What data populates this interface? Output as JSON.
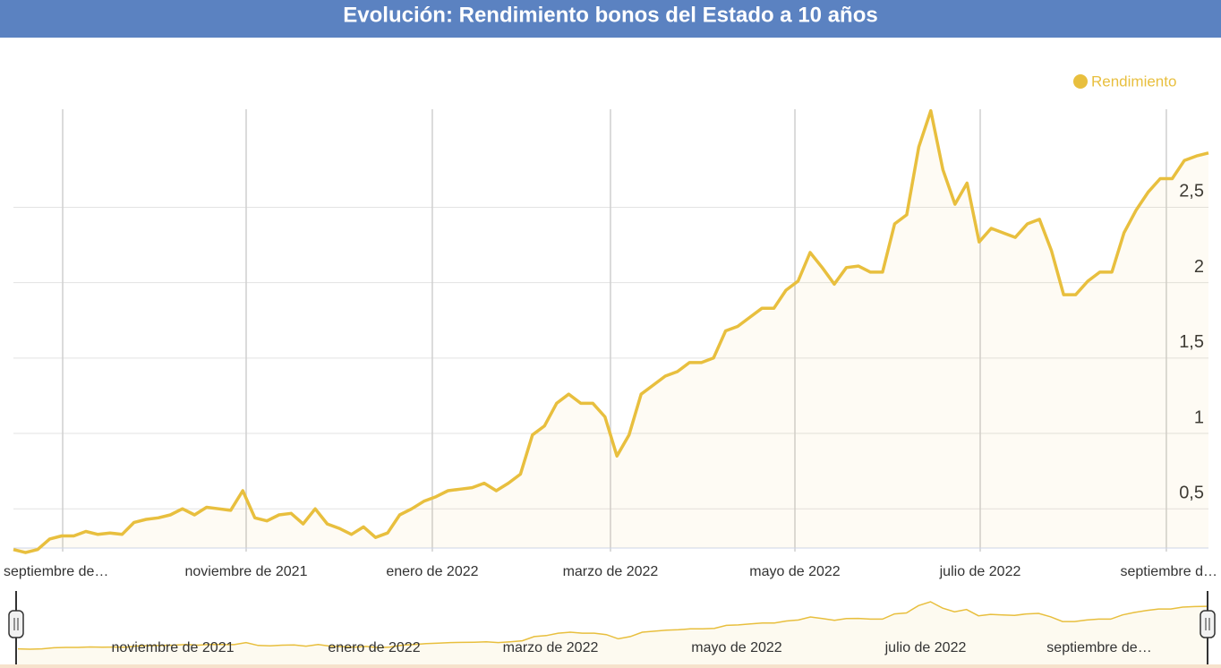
{
  "chart_data": {
    "type": "line",
    "title": "Evolución: Rendimiento bonos del Estado a 10 años",
    "categories": [
      null,
      null,
      null,
      null,
      null,
      null,
      null,
      null,
      null,
      null,
      null,
      null,
      null,
      null,
      null,
      null,
      null,
      null,
      null,
      null,
      null,
      null,
      null,
      null,
      null,
      null,
      null,
      null,
      null,
      null,
      null,
      null,
      null,
      null,
      null,
      null,
      null,
      null,
      null,
      null,
      null,
      null,
      null,
      null,
      null,
      null,
      null,
      null,
      null,
      null,
      null,
      null,
      null,
      null,
      null,
      null,
      null,
      null,
      null,
      null,
      null,
      null,
      null,
      null,
      null,
      null,
      null,
      null,
      null,
      null,
      null,
      null,
      null,
      null,
      null,
      null,
      null,
      null,
      null,
      null,
      null,
      null,
      null,
      null,
      null,
      null,
      null,
      null,
      null,
      null,
      null,
      null,
      null,
      null,
      null,
      null,
      null,
      null,
      null,
      null
    ],
    "series": [
      {
        "name": "Rendimiento",
        "color": "#e8bf3e",
        "values": [
          0.23,
          0.21,
          0.23,
          0.3,
          0.32,
          0.32,
          0.35,
          0.33,
          0.34,
          0.33,
          0.41,
          0.43,
          0.44,
          0.46,
          0.5,
          0.46,
          0.51,
          0.5,
          0.49,
          0.62,
          0.44,
          0.42,
          0.46,
          0.47,
          0.4,
          0.5,
          0.4,
          0.37,
          0.33,
          0.38,
          0.31,
          0.34,
          0.46,
          0.5,
          0.55,
          0.58,
          0.62,
          0.63,
          0.64,
          0.67,
          0.62,
          0.67,
          0.73,
          0.99,
          1.05,
          1.2,
          1.26,
          1.2,
          1.2,
          1.11,
          0.85,
          0.99,
          1.26,
          1.32,
          1.38,
          1.41,
          1.47,
          1.47,
          1.5,
          1.68,
          1.71,
          1.77,
          1.83,
          1.83,
          1.95,
          2.01,
          2.2,
          2.1,
          1.99,
          2.1,
          2.11,
          2.07,
          2.07,
          2.39,
          2.45,
          2.9,
          3.14,
          2.75,
          2.52,
          2.66,
          2.27,
          2.36,
          2.33,
          2.3,
          2.39,
          2.42,
          2.21,
          1.92,
          1.92,
          2.01,
          2.07,
          2.07,
          2.33,
          2.48,
          2.6,
          2.69,
          2.69,
          2.81,
          2.84,
          2.86
        ]
      }
    ],
    "ylim": [
      0.24,
      3.15
    ],
    "yticks": [
      {
        "value": 0.5,
        "label": "0,5"
      },
      1,
      {
        "value": 1.5,
        "label": "1,5"
      },
      2,
      {
        "value": 2.5,
        "label": "2,5"
      }
    ],
    "xticks": [
      {
        "value": 4.08,
        "label": "septiembre de…"
      },
      {
        "value": 19.28,
        "label": "noviembre de 2021"
      },
      {
        "value": 34.7,
        "label": "enero de 2022"
      },
      {
        "value": 49.46,
        "label": "marzo de 2022"
      },
      {
        "value": 64.74,
        "label": "mayo de 2022"
      },
      {
        "value": 80.09,
        "label": "julio de 2022"
      },
      {
        "value": 95.51,
        "label": "septiembre d…"
      }
    ],
    "grid": true,
    "legend": "top-right",
    "navigator": {
      "labels": [
        "noviembre de 2021",
        "enero de 2022",
        "marzo de 2022",
        "mayo de 2022",
        "julio de 2022",
        "septiembre de…"
      ]
    }
  }
}
